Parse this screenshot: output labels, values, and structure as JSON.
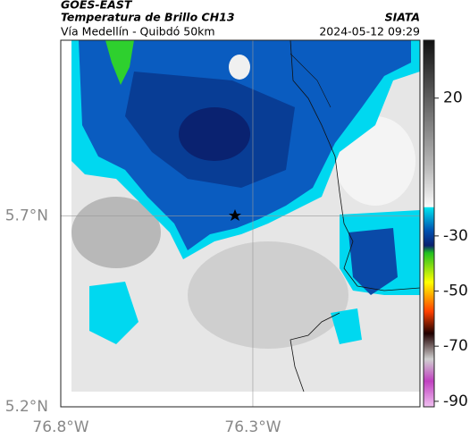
{
  "header": {
    "title": "GOES-EAST",
    "subtitle": "Temperatura de Brillo CH13",
    "route": "Vía Medellín - Quibdó 50km",
    "source": "SIATA",
    "timestamp": "2024-05-12 09:29"
  },
  "map": {
    "xlim": [
      -76.8,
      -75.865
    ],
    "ylim": [
      5.2,
      6.16
    ],
    "xticks": [
      {
        "value": -76.8,
        "label": "76.8°W"
      },
      {
        "value": -76.3,
        "label": "76.3°W"
      }
    ],
    "yticks": [
      {
        "value": 5.7,
        "label": "5.7°N"
      },
      {
        "value": 5.2,
        "label": "5.2°N"
      }
    ]
  },
  "colorbar": {
    "lim": [
      -92,
      41
    ],
    "ticks": [
      20,
      -30,
      -50,
      -70,
      -90
    ]
  }
}
